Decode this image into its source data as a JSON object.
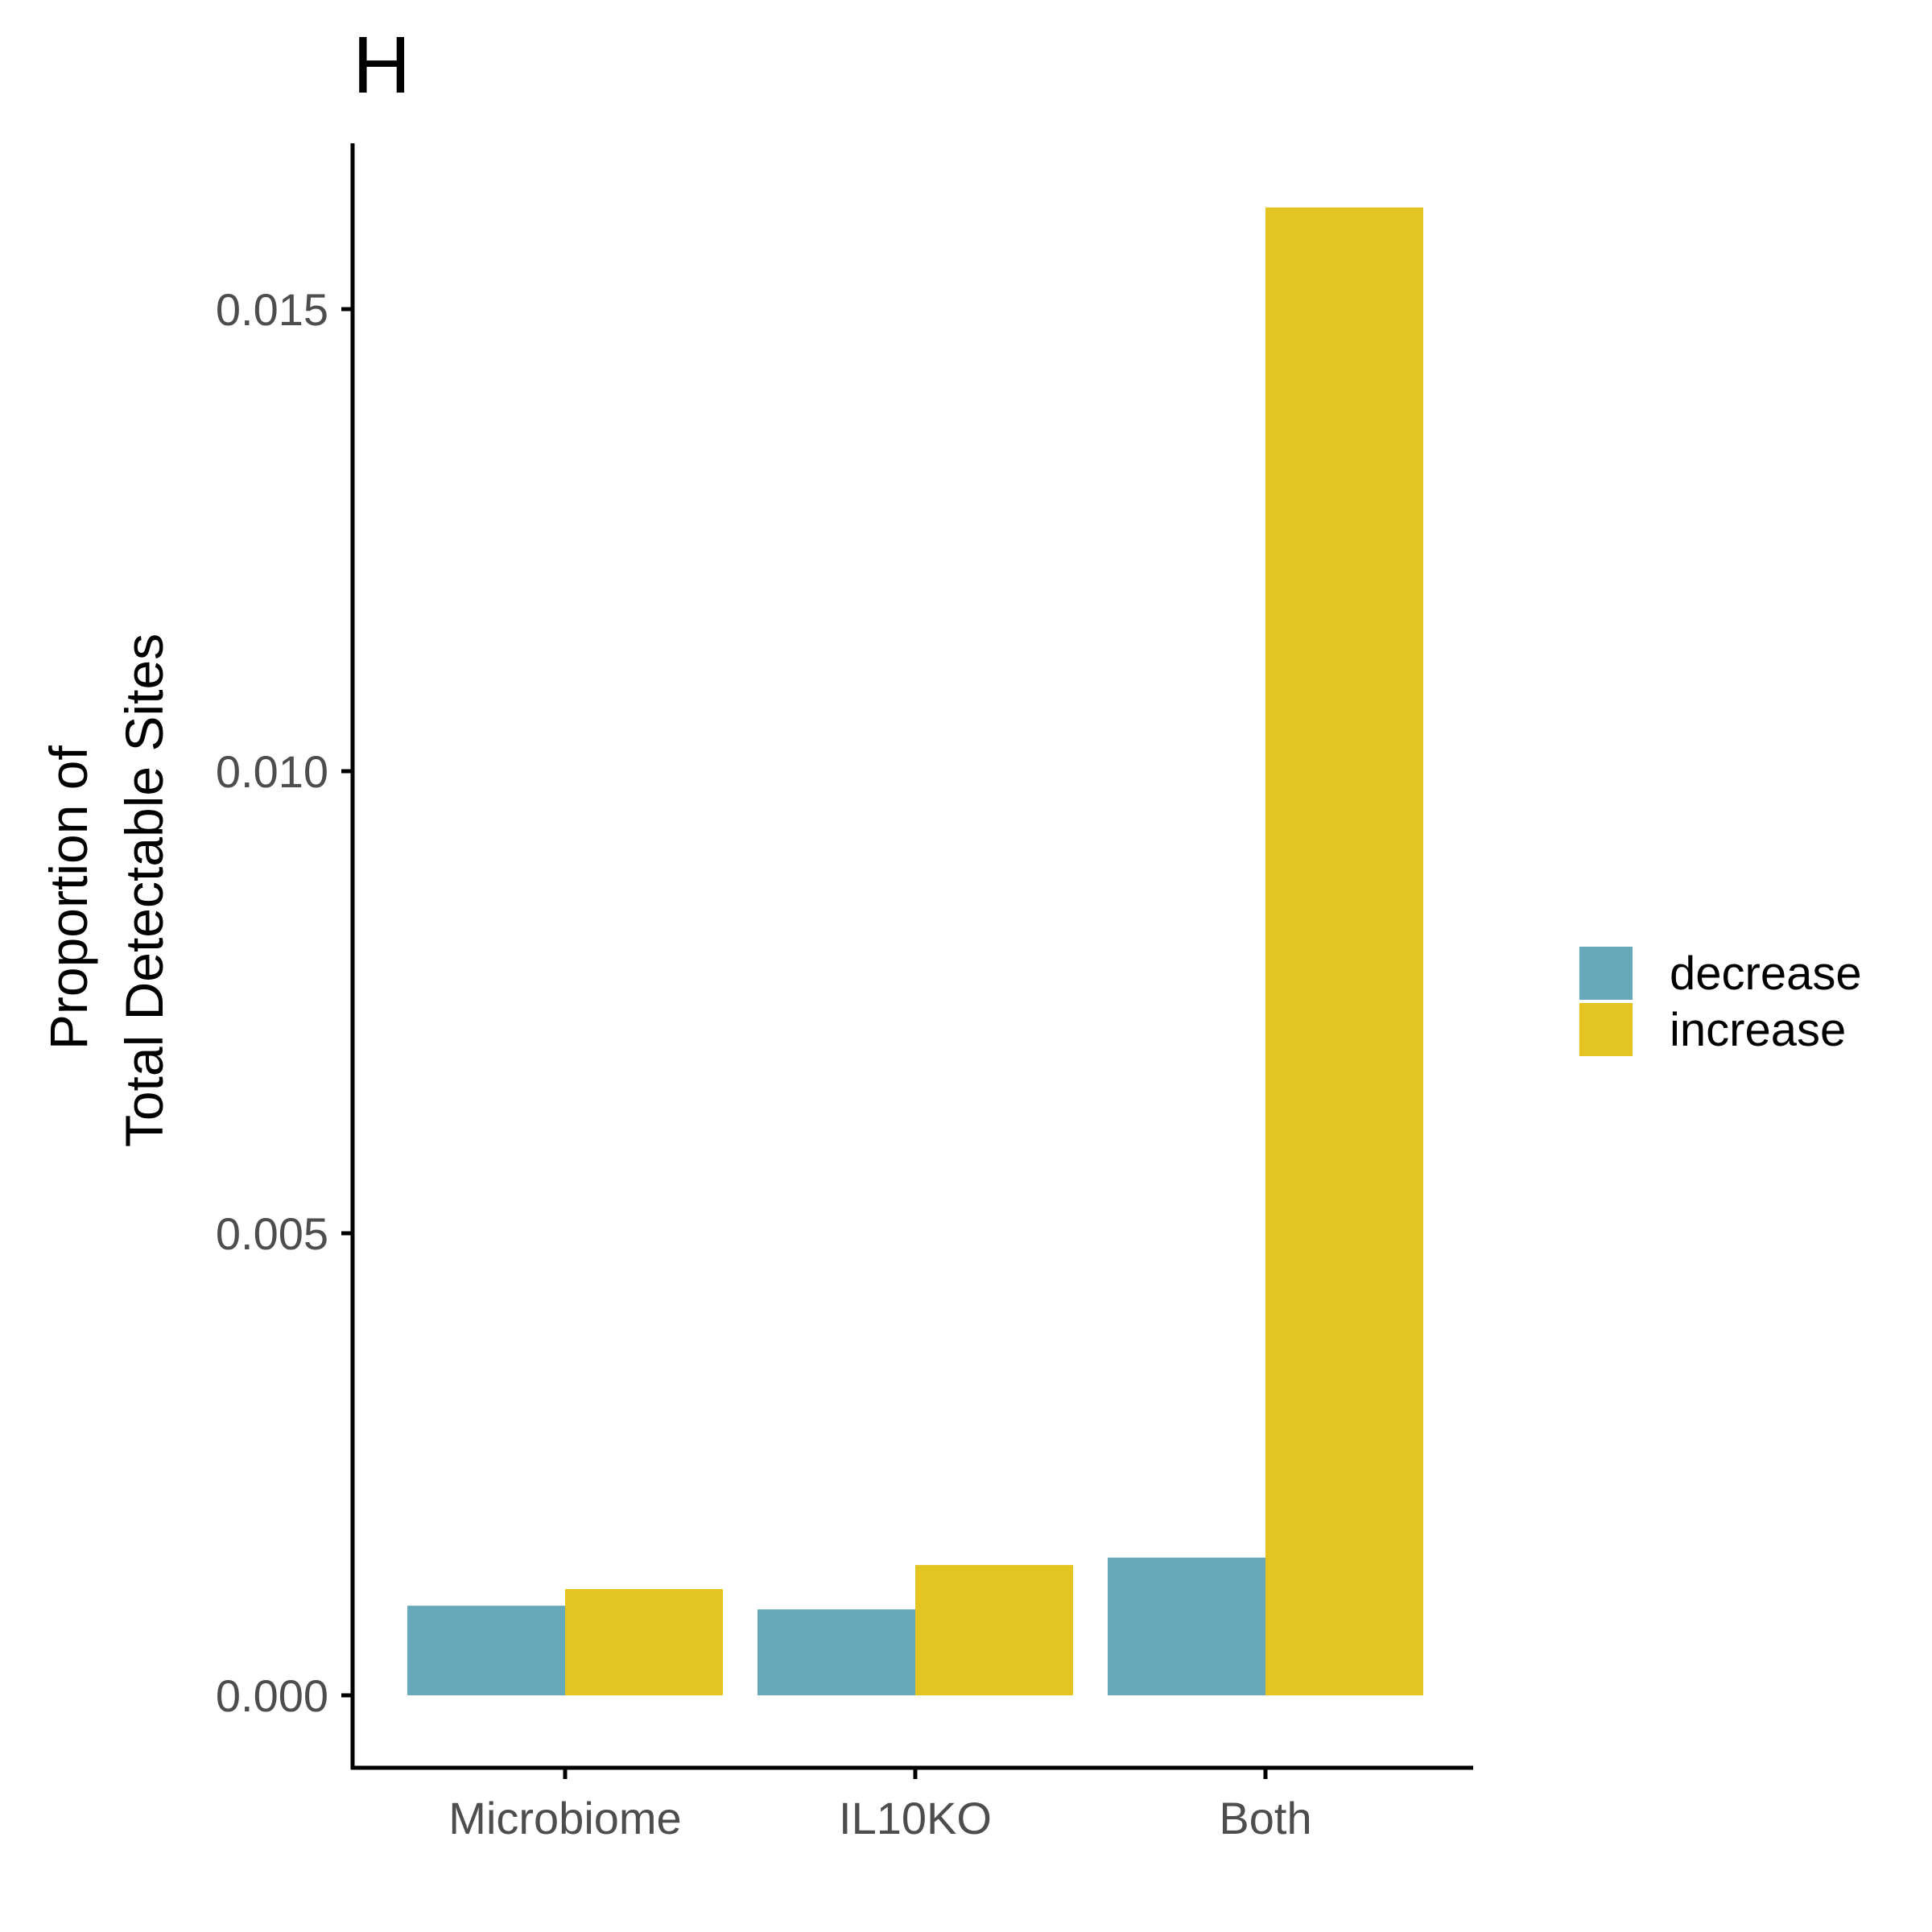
{
  "chart_data": {
    "type": "bar",
    "title": "H",
    "xlabel": "",
    "ylabel_lines": [
      "Proportion of",
      "Total Detectable Sites"
    ],
    "categories": [
      "Microbiome",
      "IL10KO",
      "Both"
    ],
    "series": [
      {
        "name": "decrease",
        "color": "#67A9B8",
        "values": [
          0.00097,
          0.00093,
          0.00149
        ]
      },
      {
        "name": "increase",
        "color": "#E3C421",
        "values": [
          0.00115,
          0.00141,
          0.0161
        ]
      }
    ],
    "yticks": [
      0,
      0.005,
      0.01,
      0.015
    ],
    "ytick_labels": [
      "0.000",
      "0.005",
      "0.010",
      "0.015"
    ],
    "ylim": [
      -0.0008,
      0.0162
    ],
    "grid": false,
    "legend_position": "right"
  }
}
